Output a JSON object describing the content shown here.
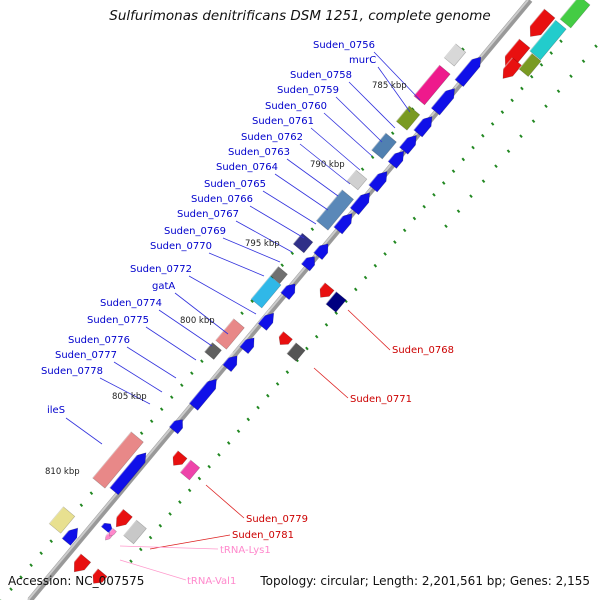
{
  "title": "Sulfurimonas denitrificans DSM 1251, complete genome",
  "footer": {
    "accession": "Accession: NC_007575",
    "topology": "Topology: circular; Length: 2,201,561 bp; Genes: 2,155"
  },
  "scale_labels": [
    "785 kbp",
    "790 kbp",
    "795 kbp",
    "800 kbp",
    "805 kbp",
    "810 kbp"
  ],
  "genes_left": [
    "Suden_0756",
    "murC",
    "Suden_0758",
    "Suden_0759",
    "Suden_0760",
    "Suden_0761",
    "Suden_0762",
    "Suden_0763",
    "Suden_0764",
    "Suden_0765",
    "Suden_0766",
    "Suden_0767",
    "Suden_0769",
    "Suden_0770",
    "Suden_0772",
    "gatA",
    "Suden_0774",
    "Suden_0775",
    "Suden_0776",
    "Suden_0777",
    "Suden_0778",
    "ileS"
  ],
  "genes_right": [
    "Suden_0768",
    "Suden_0771",
    "Suden_0779",
    "Suden_0781"
  ],
  "rna_labels": [
    "tRNA-Lys1",
    "tRNA-Val1"
  ],
  "colors": {
    "forward": "#1010e8",
    "reverse": "#e81010",
    "trna": "#ff88cc",
    "label_blue": "#0000cc",
    "label_red": "#cc0000",
    "backbone": "#888888",
    "tick": "#228822"
  }
}
